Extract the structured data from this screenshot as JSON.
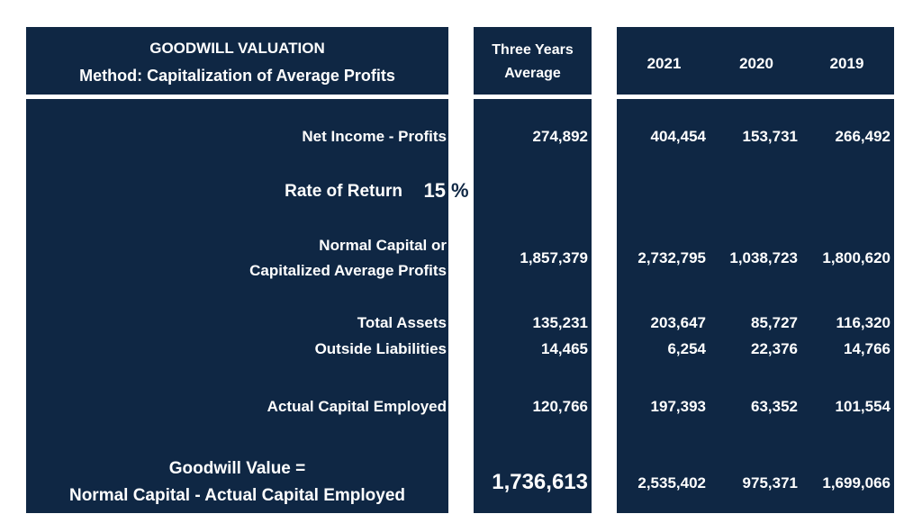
{
  "header": {
    "title": "GOODWILL VALUATION",
    "subtitle": "Method: Capitalization of Average Profits",
    "avg_line1": "Three Years",
    "avg_line2": "Average",
    "years": [
      "2021",
      "2020",
      "2019"
    ]
  },
  "rows": {
    "net_income": {
      "label": "Net Income - Profits",
      "avg": "274,892",
      "vals": [
        "404,454",
        "153,731",
        "266,492"
      ]
    },
    "rate": {
      "label": "Rate of Return",
      "value": "15",
      "unit": "%"
    },
    "normal_capital": {
      "label1": "Normal Capital or",
      "label2": "Capitalized Average Profits",
      "avg": "1,857,379",
      "vals": [
        "2,732,795",
        "1,038,723",
        "1,800,620"
      ]
    },
    "total_assets": {
      "label": "Total Assets",
      "avg": "135,231",
      "vals": [
        "203,647",
        "85,727",
        "116,320"
      ]
    },
    "outside_liabilities": {
      "label": "Outside Liabilities",
      "avg": "14,465",
      "vals": [
        "6,254",
        "22,376",
        "14,766"
      ]
    },
    "actual_capital": {
      "label": "Actual Capital Employed",
      "avg": "120,766",
      "vals": [
        "197,393",
        "63,352",
        "101,554"
      ]
    },
    "goodwill": {
      "label1": "Goodwill Value =",
      "label2": "Normal Capital - Actual Capital Employed",
      "avg": "1,736,613",
      "vals": [
        "2,535,402",
        "975,371",
        "1,699,066"
      ]
    }
  },
  "colors": {
    "panel": "#0f2744",
    "background": "#ffffff",
    "text": "#ffffff"
  }
}
